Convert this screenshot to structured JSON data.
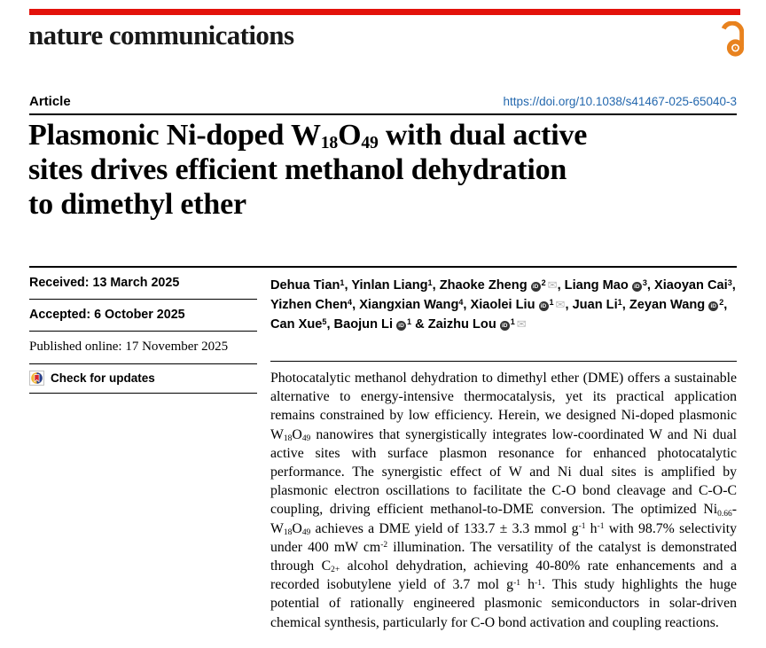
{
  "colors": {
    "accent_red": "#e3120b",
    "open_access_orange": "#e8821e",
    "link_blue": "#2468ae",
    "envelope_gray": "#b5b5b5"
  },
  "brand": {
    "logo_text": "nature communications"
  },
  "header": {
    "article_type": "Article",
    "doi": "https://doi.org/10.1038/s41467-025-65040-3"
  },
  "icons": {
    "open_access": "open-access-lock-icon",
    "check_updates": "crossmark-icon",
    "orcid": "orcid-id-icon",
    "email": "envelope-icon"
  },
  "title": {
    "lines": [
      [
        {
          "t": "Plasmonic Ni-doped W"
        },
        {
          "t": "18",
          "s": "sub"
        },
        {
          "t": "O"
        },
        {
          "t": "49",
          "s": "sub"
        },
        {
          "t": " with dual active"
        }
      ],
      [
        {
          "t": "sites drives efficient methanol dehydration"
        }
      ],
      [
        {
          "t": "to dimethyl ether"
        }
      ]
    ]
  },
  "authors": {
    "list": [
      {
        "name": "Dehua Tian",
        "aff": "1",
        "orcid": false,
        "mail": false
      },
      {
        "name": "Yinlan Liang",
        "aff": "1",
        "orcid": false,
        "mail": false
      },
      {
        "name": "Zhaoke Zheng",
        "aff": "2",
        "orcid": true,
        "mail": true
      },
      {
        "name": "Liang Mao",
        "aff": "3",
        "orcid": true,
        "mail": false
      },
      {
        "name": "Xiaoyan Cai",
        "aff": "3",
        "orcid": false,
        "mail": false
      },
      {
        "name": "Yizhen Chen",
        "aff": "4",
        "orcid": false,
        "mail": false
      },
      {
        "name": "Xiangxian Wang",
        "aff": "4",
        "orcid": false,
        "mail": false
      },
      {
        "name": "Xiaolei Liu",
        "aff": "1",
        "orcid": true,
        "mail": true
      },
      {
        "name": "Juan Li",
        "aff": "1",
        "orcid": false,
        "mail": false
      },
      {
        "name": "Zeyan Wang",
        "aff": "2",
        "orcid": true,
        "mail": false
      },
      {
        "name": "Can Xue",
        "aff": "5",
        "orcid": false,
        "mail": false
      },
      {
        "name": "Baojun Li",
        "aff": "1",
        "orcid": true,
        "mail": false
      },
      {
        "name": "Zaizhu Lou",
        "aff": "1",
        "orcid": true,
        "mail": true
      }
    ],
    "separator": ", ",
    "last_separator": " & "
  },
  "sidebar": {
    "received": "Received: 13 March 2025",
    "accepted": "Accepted: 6 October 2025",
    "published": "Published online: 17 November 2025",
    "check_updates": "Check for updates"
  },
  "abstract": {
    "segments": [
      {
        "t": "Photocatalytic methanol dehydration to dimethyl ether (DME) offers a sustainable alternative to energy-intensive thermocatalysis, yet its practical application remains constrained by low efficiency. Herein, we designed Ni-doped plasmonic W"
      },
      {
        "t": "18",
        "s": "sub"
      },
      {
        "t": "O"
      },
      {
        "t": "49",
        "s": "sub"
      },
      {
        "t": " nanowires that synergistically integrates low-coordinated W and Ni dual active sites with surface plasmon resonance for enhanced photocatalytic performance. The synergistic effect of W and Ni dual sites is amplified by plasmonic electron oscillations to facilitate the C-O bond cleavage and C-O-C coupling, driving efficient methanol-to-DME conversion. The optimized Ni"
      },
      {
        "t": "0.66",
        "s": "sub"
      },
      {
        "t": "-W"
      },
      {
        "t": "18",
        "s": "sub"
      },
      {
        "t": "O"
      },
      {
        "t": "49",
        "s": "sub"
      },
      {
        "t": " achieves a DME yield of 133.7 ± 3.3 mmol g"
      },
      {
        "t": "-1",
        "s": "sup"
      },
      {
        "t": " h"
      },
      {
        "t": "-1",
        "s": "sup"
      },
      {
        "t": " with 98.7% selectivity under 400 mW cm"
      },
      {
        "t": "-2",
        "s": "sup"
      },
      {
        "t": " illumination. The versatility of the catalyst is demonstrated through C"
      },
      {
        "t": "2+",
        "s": "sub"
      },
      {
        "t": " alcohol dehydration, achieving 40-80% rate enhancements and a recorded isobutylene yield of 3.7 mol g"
      },
      {
        "t": "-1",
        "s": "sup"
      },
      {
        "t": " h"
      },
      {
        "t": "-1",
        "s": "sup"
      },
      {
        "t": ". This study highlights the huge potential of rationally engineered plasmonic semiconductors in solar-driven chemical synthesis, particularly for C-O bond activation and coupling reactions."
      }
    ]
  }
}
